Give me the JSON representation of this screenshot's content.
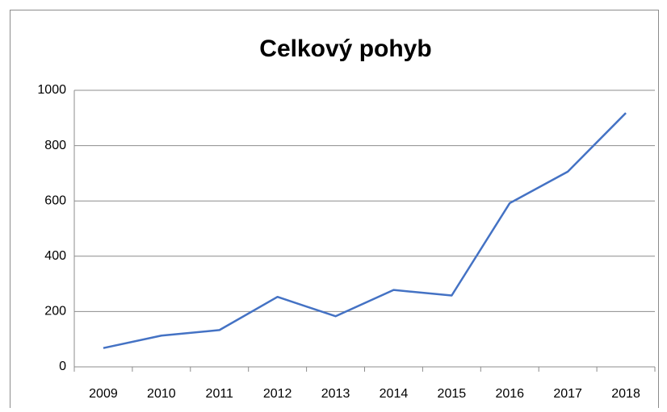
{
  "chart_data": {
    "type": "line",
    "title": "Celkový pohyb",
    "categories": [
      "2009",
      "2010",
      "2011",
      "2012",
      "2013",
      "2014",
      "2015",
      "2016",
      "2017",
      "2018"
    ],
    "series": [
      {
        "color": "#4472c4",
        "values": [
          68,
          113,
          133,
          253,
          183,
          278,
          258,
          592,
          706,
          918
        ]
      }
    ],
    "ylim": [
      0,
      1000
    ],
    "yticks": [
      0,
      200,
      400,
      600,
      800,
      1000
    ],
    "grid": true
  }
}
